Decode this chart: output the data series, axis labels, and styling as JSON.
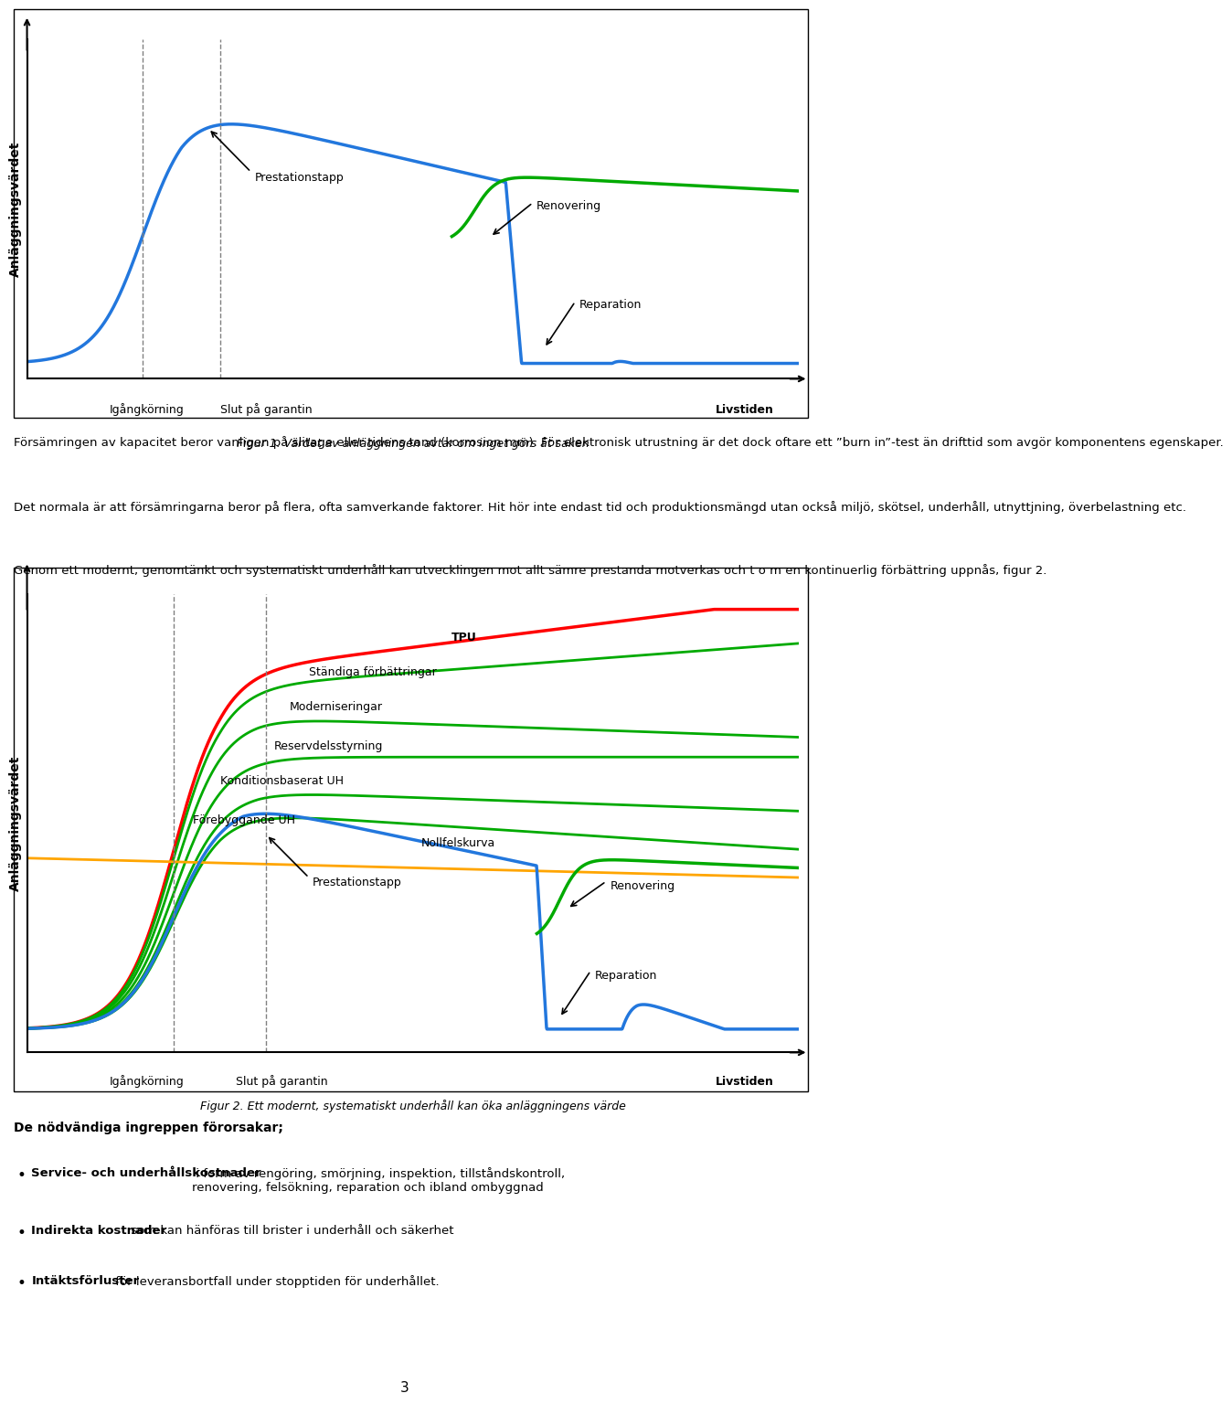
{
  "fig_width": 9.6,
  "fig_height": 15.68,
  "fig1": {
    "ylabel": "Anläggningsvärdet",
    "xlabel_left": "Igångkörning",
    "xlabel_mid": "Slut på garantin",
    "xlabel_right": "Livstiden",
    "caption": "Figur 1. Värdet av anläggningen avtar om inget görs åt saken",
    "ann_prestationstapp": "Prestationstapp",
    "ann_renovering": "Renovering",
    "ann_reparation": "Reparation"
  },
  "fig2": {
    "ylabel": "Anläggningsvärdet",
    "xlabel_left": "Igångkörning",
    "xlabel_mid": "Slut på garantin",
    "xlabel_right": "Livstiden",
    "caption": "Figur 2. Ett modernt, systematiskt underhåll kan öka anläggningens värde",
    "ann_tpu": "TPU",
    "ann_standiga": "Ständiga förbättringar",
    "ann_moderniseringar": "Moderniseringar",
    "ann_reservdelsstyrning": "Reservdelsstyrning",
    "ann_konditionsbaserat": "Konditionsbaserat UH",
    "ann_forebyggande": "Förebyggande UH",
    "ann_nollfelskurva": "Nollfelskurva",
    "ann_prestationstapp": "Prestationstapp",
    "ann_renovering": "Renovering",
    "ann_reparation": "Reparation"
  },
  "paragraphs": [
    "Försämringen av kapacitet beror vanligen på slitage eller tidens tand (korrosion mm). För elektronisk utrustning är det dock oftare ett ”burn in”-test än drifttid som avgör komponentens egenskaper.",
    "Det normala är att försämringarna beror på flera, ofta samverkande faktorer. Hit hör inte endast tid och produktionsmängd utan också miljö, skötsel, underhåll, utnyttjning, överbelastning etc.",
    "Genom ett modernt, genomtänkt och systematiskt underhåll kan utvecklingen mot allt sämre prestanda motverkas och t o m en kontinuerlig förbättring uppnås, figur 2."
  ],
  "bullet_header": "De nödvändiga ingreppen förorsakar;",
  "bullets": [
    {
      "bold": "Service- och underhållskostnader",
      "normal": " i form av rengöring, smörjning, inspektion, tillståndskontroll,\nrenovering, felsökning, reparation och ibland ombyggnad"
    },
    {
      "bold": "Indirekta kostnader",
      "normal": " som kan hänföras till brister i underhåll och säkerhet"
    },
    {
      "bold": "Intäktsförluster",
      "normal": " för leveransbortfall under stopptiden för underhållet."
    }
  ],
  "page_number": "3"
}
